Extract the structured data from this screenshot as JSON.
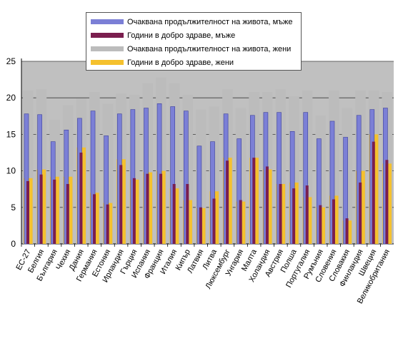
{
  "chart_data": {
    "type": "bar",
    "title": "",
    "xlabel": "",
    "ylabel": "",
    "ylim": [
      0,
      25
    ],
    "yticks": [
      "0",
      "5",
      "10",
      "15",
      "20",
      "25"
    ],
    "grid": true,
    "legend_position": "top-center",
    "categories": [
      "ЕС-27",
      "Белгия",
      "България",
      "Чехия",
      "Дания",
      "Германия",
      "Естония",
      "Ирландия",
      "Гърция",
      "Испания",
      "Франция",
      "Италия",
      "Кипър",
      "Латвия",
      "Литва",
      "Люксембург",
      "Унгария",
      "Малта",
      "Холандия",
      "Австрия",
      "Полша",
      "Португалия",
      "Румъния",
      "Словения",
      "Словакия",
      "Финландия",
      "Швеция",
      "Великобритания"
    ],
    "series": [
      {
        "name": "Очаквана продължителност на живота, мъже",
        "color": "#7b7fd6",
        "values": [
          17.8,
          17.7,
          14.0,
          15.6,
          17.2,
          18.2,
          14.8,
          17.8,
          18.4,
          18.6,
          19.2,
          18.8,
          18.2,
          13.4,
          14.0,
          17.8,
          14.4,
          17.6,
          18.0,
          18.0,
          15.4,
          18.0,
          14.4,
          16.8,
          14.6,
          17.6,
          18.4,
          18.6
        ]
      },
      {
        "name": "Години в добро здраве, мъже",
        "color": "#7a1e4e",
        "values": [
          8.6,
          9.5,
          8.8,
          8.2,
          12.5,
          6.8,
          5.4,
          10.8,
          9.0,
          9.6,
          9.6,
          8.2,
          8.2,
          5.0,
          6.2,
          11.4,
          6.0,
          11.8,
          10.6,
          8.2,
          7.6,
          8.0,
          5.3,
          6.1,
          3.5,
          8.4,
          14.0,
          11.5
        ]
      },
      {
        "name": "Очаквана продължителност на живота, жени",
        "color": "#bcbcbc",
        "values": [
          21.0,
          21.2,
          17.0,
          19.0,
          19.9,
          20.8,
          19.2,
          20.6,
          20.4,
          22.0,
          22.8,
          22.0,
          20.4,
          18.4,
          18.8,
          21.2,
          18.6,
          20.8,
          20.8,
          21.2,
          20.2,
          21.0,
          17.6,
          21.0,
          18.6,
          21.0,
          21.0,
          20.8
        ]
      },
      {
        "name": "Години в добро здраве, жени",
        "color": "#f5c12e",
        "values": [
          9.0,
          10.2,
          9.2,
          9.2,
          13.2,
          7.0,
          5.6,
          11.6,
          8.8,
          9.8,
          10.0,
          7.6,
          6.0,
          4.9,
          7.2,
          11.8,
          5.8,
          11.8,
          10.2,
          8.2,
          8.4,
          6.4,
          5.0,
          6.6,
          3.2,
          10.0,
          15.0,
          11.0
        ]
      }
    ]
  }
}
